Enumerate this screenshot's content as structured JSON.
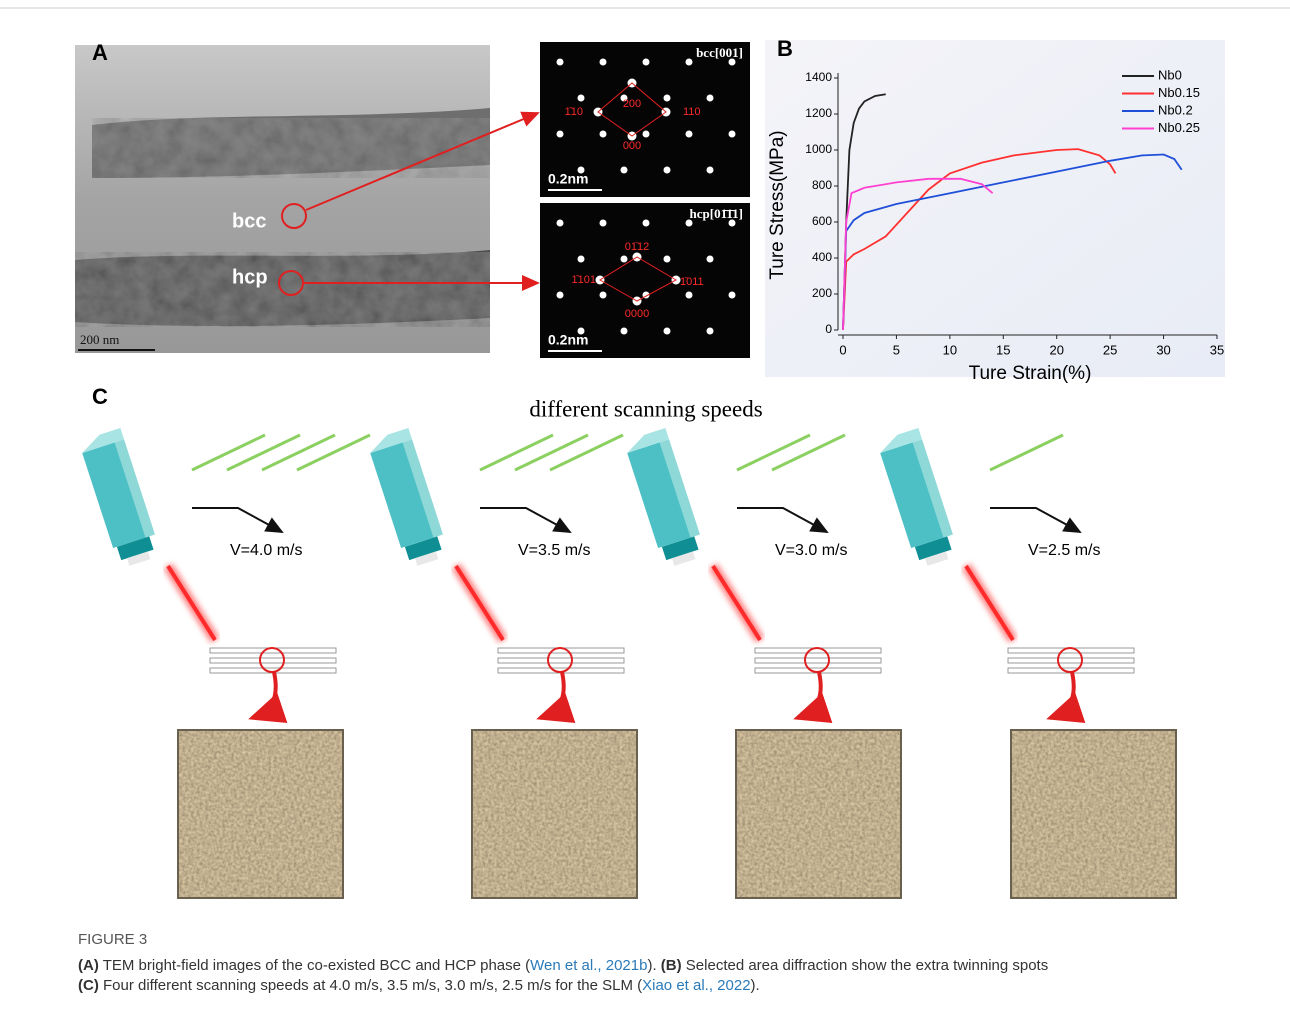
{
  "panel_a": {
    "label": "A",
    "phase_labels": [
      "bcc",
      "hcp"
    ],
    "scale_bar": "200 nm",
    "sad_patterns": [
      {
        "zone": "bcc[001]",
        "spots": [
          "200",
          "1̄10",
          "110",
          "000"
        ],
        "scale_bar": "0.2nm"
      },
      {
        "zone": "hcp[01̄1̄1]",
        "spots": [
          "01̄12",
          "1̄101",
          "1̄011",
          "0000"
        ],
        "scale_bar": "0.2nm"
      }
    ]
  },
  "chart_data": {
    "type": "line",
    "label": "B",
    "x_label": "Ture Strain(%)",
    "y_label": "Ture Stress(MPa)",
    "xlim": [
      0,
      35
    ],
    "xticks": [
      0,
      5,
      10,
      15,
      20,
      25,
      30,
      35
    ],
    "ylim": [
      0,
      1400
    ],
    "yticks": [
      0,
      200,
      400,
      600,
      800,
      1000,
      1200,
      1400
    ],
    "legend": "top-right",
    "series": [
      {
        "name": "Nb0",
        "color": "#222222",
        "x": [
          0,
          0.3,
          0.6,
          1,
          1.5,
          2,
          3,
          4
        ],
        "values": [
          0,
          600,
          1000,
          1150,
          1230,
          1270,
          1300,
          1310
        ]
      },
      {
        "name": "Nb0.15",
        "color": "#ff3030",
        "x": [
          0,
          0.3,
          1,
          2,
          4,
          6,
          8,
          10,
          13,
          16,
          20,
          22,
          24,
          25,
          25.5
        ],
        "values": [
          0,
          380,
          420,
          450,
          520,
          650,
          780,
          870,
          930,
          970,
          1000,
          1005,
          970,
          920,
          870
        ]
      },
      {
        "name": "Nb0.2",
        "color": "#1f4fd8",
        "x": [
          0,
          0.3,
          1,
          2,
          5,
          10,
          15,
          20,
          25,
          28,
          30,
          31,
          31.7
        ],
        "values": [
          0,
          550,
          610,
          650,
          700,
          760,
          820,
          880,
          940,
          970,
          975,
          950,
          890
        ]
      },
      {
        "name": "Nb0.25",
        "color": "#ff40d0",
        "x": [
          0,
          0.3,
          0.8,
          2,
          5,
          8,
          11,
          13,
          14
        ],
        "values": [
          0,
          600,
          760,
          790,
          820,
          840,
          840,
          810,
          760
        ]
      }
    ]
  },
  "panel_c": {
    "label": "C",
    "title": "different scanning speeds",
    "speeds": [
      "V=4.0 m/s",
      "V=3.5 m/s",
      "V=3.0 m/s",
      "V=2.5 m/s"
    ]
  },
  "caption": {
    "figure": "FIGURE 3",
    "parts": [
      "(A)",
      " TEM bright-field images of the co-existed BCC and HCP phase (",
      "Wen et al., 2021b",
      "). ",
      "(B)",
      " Selected area diffraction show the extra twinning spots",
      "(C)",
      " Four different scanning speeds at 4.0 m/s, 3.5 m/s, 3.0 m/s, 2.5 m/s for the SLM (",
      "Xiao et al., 2022",
      ")."
    ]
  }
}
